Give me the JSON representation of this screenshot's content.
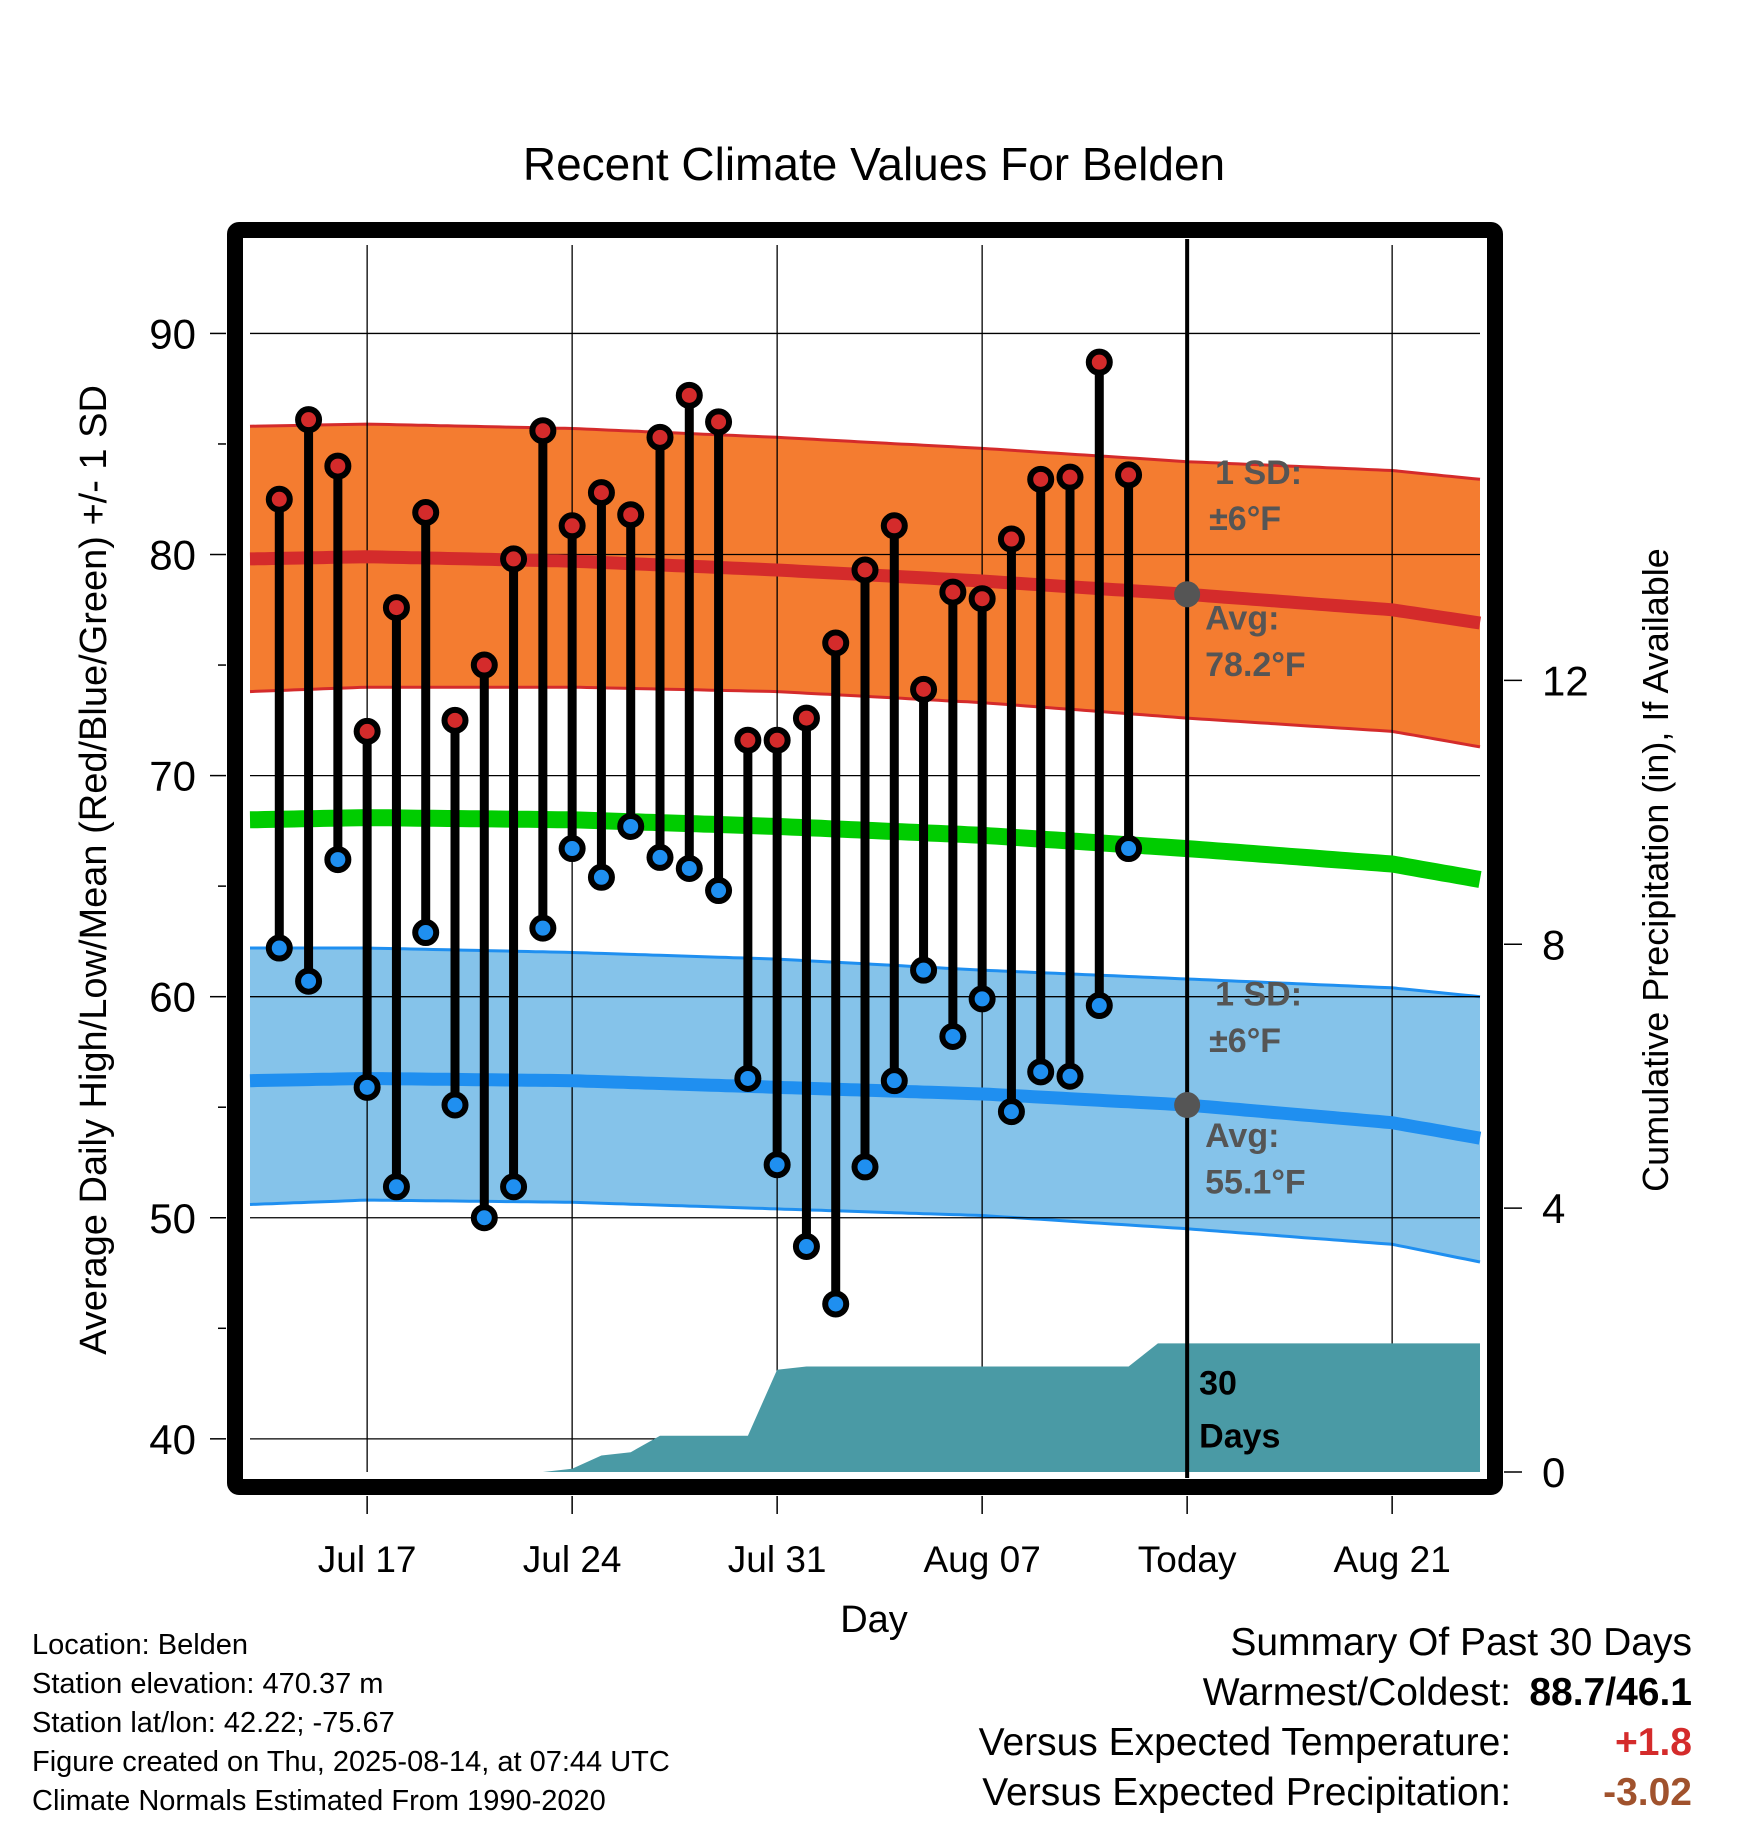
{
  "chart_data": {
    "type": "line",
    "title": "Recent Climate Values For Belden",
    "xlabel": "Day",
    "ylabel": "Average Daily High/Low/Mean (Red/Blue/Green) +/- 1 SD",
    "y2label": "Cumulative Precipitation (in), If Available",
    "ylim": [
      38.5,
      94
    ],
    "y2lim": [
      0,
      18.6
    ],
    "yticks": [
      40,
      50,
      60,
      70,
      80,
      90
    ],
    "y2ticks": [
      0,
      4,
      8,
      12
    ],
    "xlim": [
      "2025-07-13",
      "2025-08-24"
    ],
    "xticks": [
      {
        "date": "2025-07-17",
        "label": "Jul 17"
      },
      {
        "date": "2025-07-24",
        "label": "Jul 24"
      },
      {
        "date": "2025-07-31",
        "label": "Jul 31"
      },
      {
        "date": "2025-08-07",
        "label": "Aug 07"
      },
      {
        "date": "2025-08-14",
        "label": "Today"
      },
      {
        "date": "2025-08-21",
        "label": "Aug 21"
      }
    ],
    "today": "2025-08-14",
    "daily": {
      "dates": [
        "2025-07-14",
        "2025-07-15",
        "2025-07-16",
        "2025-07-17",
        "2025-07-18",
        "2025-07-19",
        "2025-07-20",
        "2025-07-21",
        "2025-07-22",
        "2025-07-23",
        "2025-07-24",
        "2025-07-25",
        "2025-07-26",
        "2025-07-27",
        "2025-07-28",
        "2025-07-29",
        "2025-07-30",
        "2025-07-31",
        "2025-08-01",
        "2025-08-02",
        "2025-08-03",
        "2025-08-04",
        "2025-08-05",
        "2025-08-06",
        "2025-08-07",
        "2025-08-08",
        "2025-08-09",
        "2025-08-10",
        "2025-08-11",
        "2025-08-12",
        "2025-08-13"
      ],
      "high": [
        82.5,
        86.1,
        84.0,
        72.0,
        77.6,
        81.9,
        72.5,
        75.0,
        79.8,
        85.6,
        81.3,
        82.8,
        81.8,
        85.3,
        87.2,
        86.0,
        71.6,
        71.6,
        72.6,
        76.0,
        79.3,
        81.3,
        73.9,
        78.3,
        78.0,
        80.7,
        83.4,
        83.5,
        88.7,
        83.6,
        null
      ],
      "low": [
        62.2,
        60.7,
        66.2,
        55.9,
        51.4,
        62.9,
        55.1,
        50.0,
        51.4,
        63.1,
        66.7,
        65.4,
        67.7,
        66.3,
        65.8,
        64.8,
        56.3,
        52.4,
        48.7,
        46.1,
        52.3,
        56.2,
        61.2,
        58.2,
        59.9,
        54.8,
        56.6,
        56.4,
        59.6,
        66.7,
        null
      ]
    },
    "normals": {
      "dates": [
        "2025-07-13",
        "2025-07-17",
        "2025-07-24",
        "2025-07-31",
        "2025-08-07",
        "2025-08-14",
        "2025-08-21",
        "2025-08-24"
      ],
      "high_avg": [
        79.8,
        79.9,
        79.7,
        79.3,
        78.8,
        78.2,
        77.5,
        76.9
      ],
      "high_sd_upper": [
        85.8,
        85.9,
        85.7,
        85.3,
        84.8,
        84.2,
        83.8,
        83.4
      ],
      "high_sd_lower": [
        73.8,
        74.0,
        74.0,
        73.8,
        73.3,
        72.6,
        72.0,
        71.3
      ],
      "mean": [
        68.0,
        68.1,
        68.0,
        67.7,
        67.3,
        66.7,
        66.0,
        65.3
      ],
      "low_avg": [
        56.2,
        56.3,
        56.2,
        55.9,
        55.6,
        55.1,
        54.3,
        53.6
      ],
      "low_sd_upper": [
        62.2,
        62.2,
        62.0,
        61.7,
        61.2,
        60.8,
        60.4,
        60.0
      ],
      "low_sd_lower": [
        50.6,
        50.8,
        50.7,
        50.4,
        50.1,
        49.5,
        48.8,
        48.0
      ]
    },
    "precip_cumulative": {
      "dates": [
        "2025-07-13",
        "2025-07-23",
        "2025-07-24",
        "2025-07-25",
        "2025-07-26",
        "2025-07-27",
        "2025-07-28",
        "2025-07-29",
        "2025-07-30",
        "2025-07-31",
        "2025-08-01",
        "2025-08-05",
        "2025-08-12",
        "2025-08-13",
        "2025-08-14",
        "2025-08-24"
      ],
      "values": [
        0.0,
        0.0,
        0.05,
        0.25,
        0.3,
        0.55,
        0.55,
        0.55,
        0.55,
        1.55,
        1.6,
        1.6,
        1.6,
        1.95,
        1.95,
        1.95
      ]
    },
    "annotations": {
      "high_sd_label": "1 SD:",
      "high_sd_value": "±6°F",
      "high_avg_label": "Avg:",
      "high_avg_value": "78.2°F",
      "low_sd_label": "1 SD:",
      "low_sd_value": "±6°F",
      "low_avg_label": "Avg:",
      "low_avg_value": "55.1°F",
      "days_number": "30",
      "days_word": "Days"
    },
    "colors": {
      "high_band": "#f47c30",
      "high_line": "#d42b2b",
      "low_band": "#85c3ea",
      "low_line": "#1f8ff0",
      "mean_line": "#00cc00",
      "precip_fill": "#4a9aa5",
      "high_marker": "#d42b2b",
      "low_marker": "#1f8ff0",
      "avg_marker": "#555555",
      "annotation_text": "#555555"
    }
  },
  "footer": {
    "location": "Location: Belden",
    "elevation": "Station elevation: 470.37 m",
    "latlon": "Station lat/lon: 42.22; -75.67",
    "created": "Figure created on Thu, 2025-08-14, at 07:44 UTC",
    "normals": "Climate Normals Estimated From 1990-2020"
  },
  "summary": {
    "title": "Summary Of Past 30 Days",
    "warmest_label": "Warmest/Coldest:",
    "warmest_value": "88.7/46.1",
    "temp_label": "Versus Expected Temperature:",
    "temp_value": "+1.8",
    "temp_color": "#d42b2b",
    "precip_label": "Versus Expected Precipitation:",
    "precip_value": "-3.02",
    "precip_color": "#a0522d"
  }
}
